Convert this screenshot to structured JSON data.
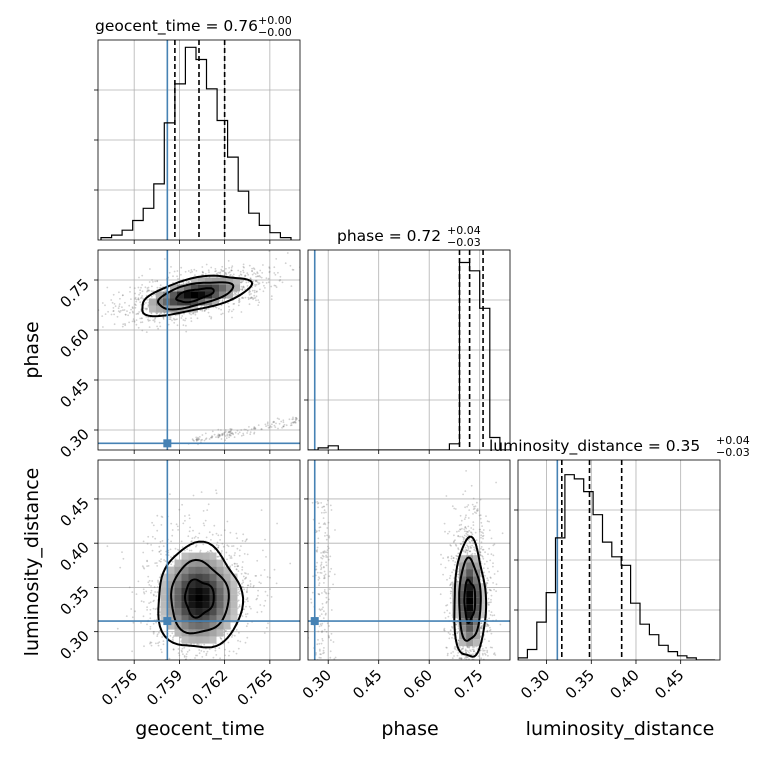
{
  "chart_data": {
    "type": "corner",
    "parameters": [
      {
        "name": "geocent_time",
        "xlabel": "geocent_time",
        "range": [
          0.7536,
          0.767
        ],
        "ticks": [
          0.756,
          0.759,
          0.762,
          0.765
        ],
        "tick_labels": [
          "0.756",
          "0.759",
          "0.762",
          "0.765"
        ],
        "truth": 0.7582,
        "quantiles": [
          0.7587,
          0.7603,
          0.762
        ]
      },
      {
        "name": "phase",
        "xlabel": "phase",
        "ylabel": "phase",
        "range": [
          0.24,
          0.84
        ],
        "ticks": [
          0.3,
          0.45,
          0.6,
          0.75
        ],
        "tick_labels": [
          "0.30",
          "0.45",
          "0.60",
          "0.75"
        ],
        "truth": 0.26,
        "quantiles": [
          0.69,
          0.72,
          0.76
        ]
      },
      {
        "name": "luminosity_distance",
        "xlabel": "luminosity_distance",
        "ylabel": "luminosity_distance",
        "range": [
          0.268,
          0.494
        ],
        "ticks": [
          0.3,
          0.35,
          0.4,
          0.45
        ],
        "tick_labels": [
          "0.30",
          "0.35",
          "0.40",
          "0.45"
        ],
        "truth": 0.312,
        "quantiles": [
          0.317,
          0.348,
          0.384
        ]
      }
    ],
    "titles": [
      {
        "label": "geocent_time = 0.76",
        "sup": "+0.00",
        "sub": "−0.00"
      },
      {
        "label": "phase = 0.72",
        "sup": "+0.04",
        "sub": "−0.03"
      },
      {
        "label": "luminosity_distance = 0.35",
        "sup": "+0.04",
        "sub": "−0.03"
      }
    ],
    "histograms": [
      {
        "param": "geocent_time",
        "bin_edges": [
          0.7538,
          0.7545,
          0.7552,
          0.7559,
          0.7566,
          0.7573,
          0.758,
          0.7587,
          0.7594,
          0.7601,
          0.7608,
          0.7615,
          0.7622,
          0.7629,
          0.7636,
          0.7643,
          0.765,
          0.7657,
          0.7664
        ],
        "counts": [
          1,
          2,
          4,
          8,
          13,
          23,
          48,
          64,
          79,
          74,
          62,
          49,
          34,
          20,
          11,
          6,
          3,
          1
        ],
        "ymax": 82
      },
      {
        "param": "phase",
        "bin_edges": [
          0.24,
          0.27,
          0.3,
          0.33,
          0.36,
          0.39,
          0.42,
          0.45,
          0.48,
          0.51,
          0.54,
          0.57,
          0.6,
          0.63,
          0.66,
          0.69,
          0.72,
          0.75,
          0.78,
          0.81,
          0.84
        ],
        "counts": [
          0,
          1,
          2,
          0,
          0,
          0,
          0,
          0,
          0,
          0,
          0,
          0,
          0,
          0,
          3,
          90,
          86,
          68,
          6,
          0
        ],
        "ymax": 96
      },
      {
        "param": "luminosity_distance",
        "bin_edges": [
          0.268,
          0.2785,
          0.289,
          0.2995,
          0.31,
          0.3205,
          0.331,
          0.3415,
          0.352,
          0.3625,
          0.373,
          0.3835,
          0.394,
          0.4045,
          0.415,
          0.4255,
          0.436,
          0.4465,
          0.457,
          0.4675,
          0.478,
          0.4885
        ],
        "counts": [
          1,
          5,
          18,
          32,
          58,
          88,
          86,
          80,
          69,
          56,
          49,
          45,
          27,
          17,
          12,
          7,
          4,
          2,
          1,
          0,
          0
        ],
        "ymax": 95
      }
    ],
    "scatter_panels": [
      {
        "x": "geocent_time",
        "y": "phase",
        "peak": [
          0.76,
          0.705
        ]
      },
      {
        "x": "geocent_time",
        "y": "luminosity_distance",
        "peak": [
          0.7603,
          0.338
        ]
      },
      {
        "x": "phase",
        "y": "luminosity_distance",
        "peak": [
          0.72,
          0.335
        ]
      }
    ],
    "colors": {
      "truth": "#4682b4",
      "histogram": "#000000",
      "quantile": "#000000",
      "grid": "#b0b0b0"
    },
    "grid": true
  }
}
